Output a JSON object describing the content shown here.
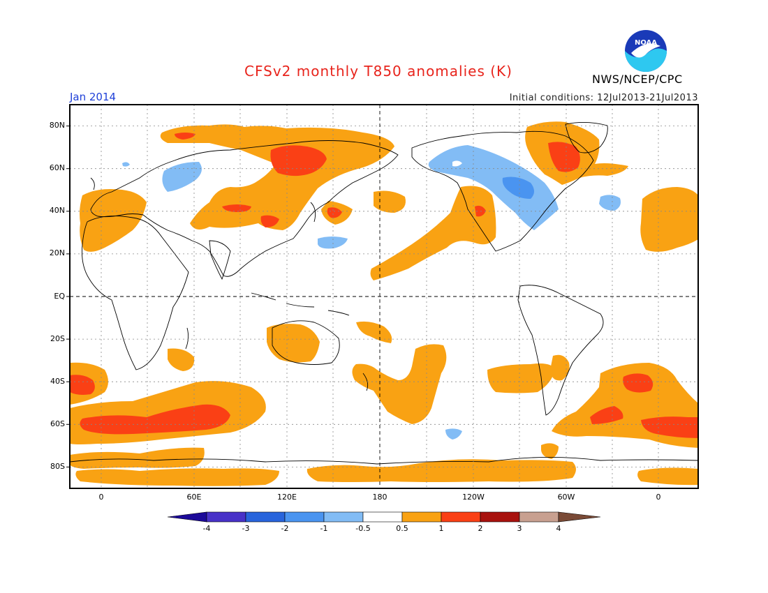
{
  "header": {
    "title": "CFSv2 monthly T850 anomalies (K)",
    "period": "Jan 2014",
    "initial_conditions": "Initial conditions: 12Jul2013-21Jul2013",
    "agency": "NWS/NCEP/CPC",
    "logo_text": "NOAA"
  },
  "map": {
    "lat_labels": [
      "80N",
      "60N",
      "40N",
      "20N",
      "EQ",
      "20S",
      "40S",
      "60S",
      "80S"
    ],
    "lon_labels": [
      "0",
      "60E",
      "120E",
      "180",
      "120W",
      "60W",
      "0"
    ],
    "projection": "cylindrical, centered on 180",
    "grid": "dotted every 30 degrees; dashed equator and 180 meridian"
  },
  "colorbar": {
    "labels": [
      "-4",
      "-3",
      "-2",
      "-1",
      "-0.5",
      "0.5",
      "1",
      "2",
      "3",
      "4"
    ],
    "colors": [
      "#1c0a99",
      "#4832c8",
      "#2864dc",
      "#4a94f0",
      "#82bcf5",
      "#ffffff",
      "#f9a213",
      "#fa4015",
      "#a8120e",
      "#c8a090",
      "#7a4a36"
    ]
  },
  "anomaly_colors": {
    "warm_0_5_to_1": "#f9a213",
    "warm_1_to_2": "#fa4015",
    "cold_minus1_to_minus0_5": "#82bcf5",
    "cold_minus2_to_minus1": "#4a94f0"
  }
}
